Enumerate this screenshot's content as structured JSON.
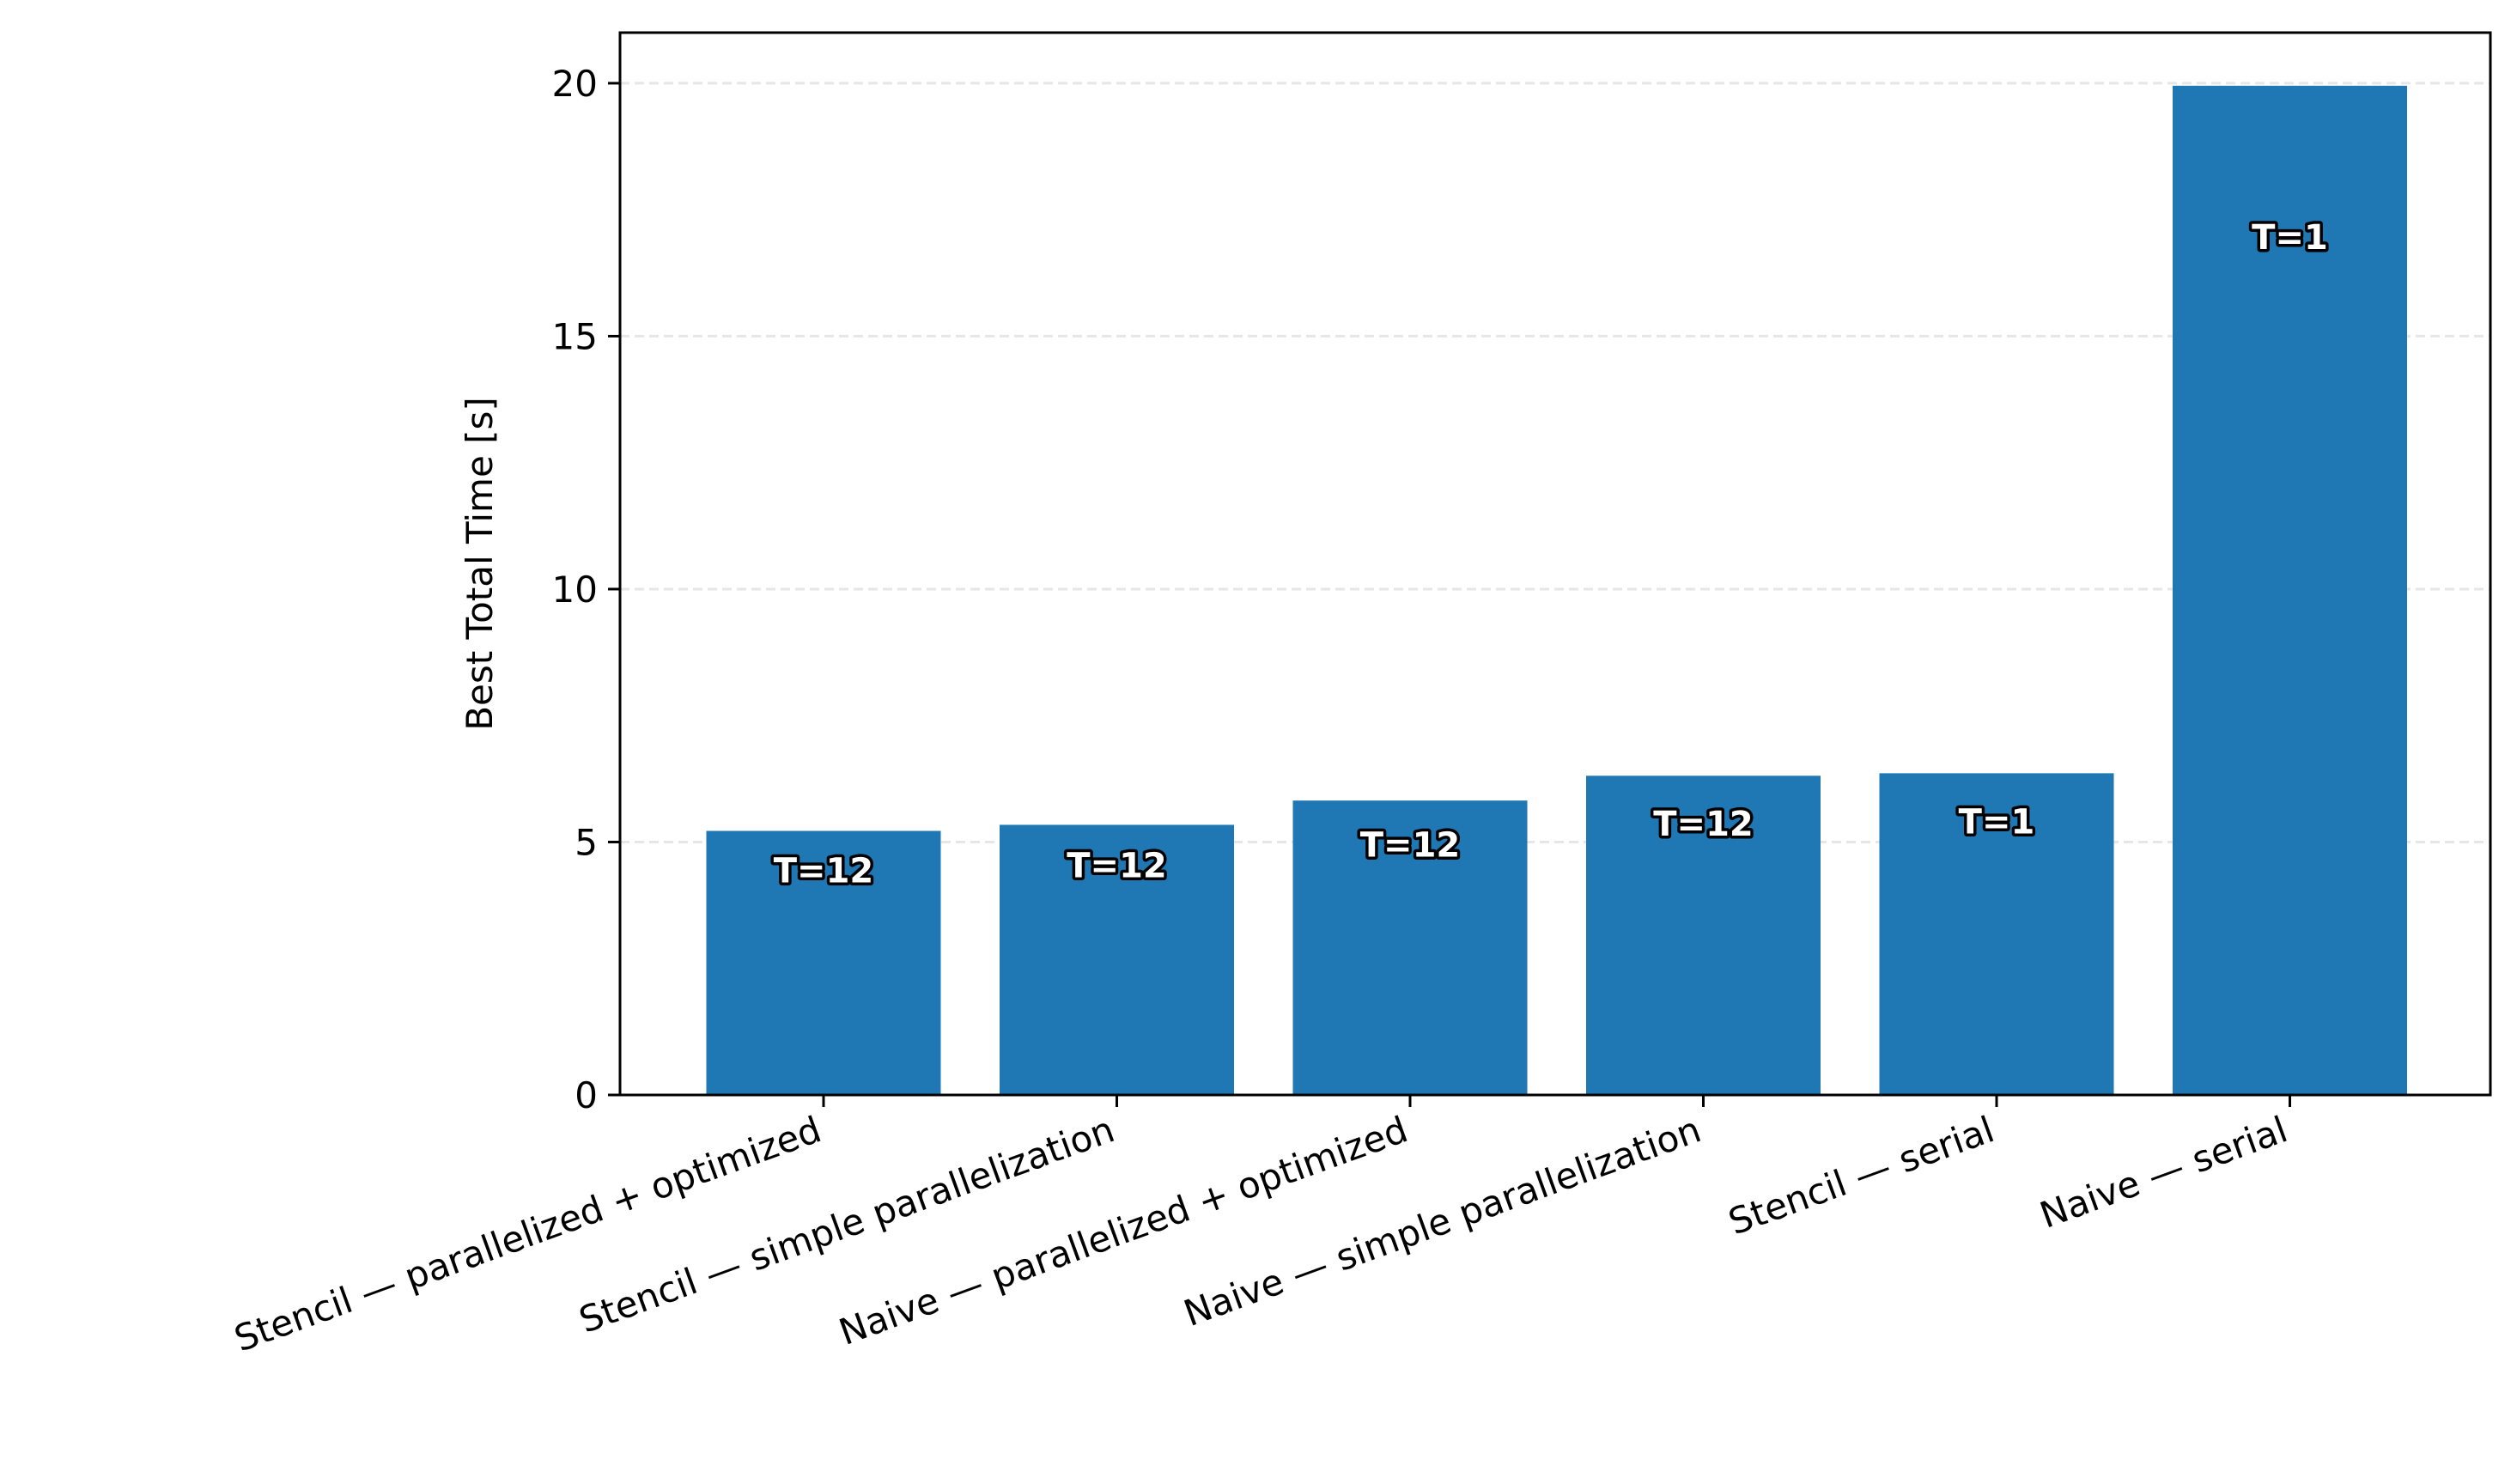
{
  "chart_data": {
    "type": "bar",
    "categories": [
      "Stencil — parallelized + optimized",
      "Stencil — simple parallelization",
      "Naive — parallelized + optimized",
      "Naive — simple parallelization",
      "Stencil — serial",
      "Naive — serial"
    ],
    "values": [
      5.22,
      5.34,
      5.82,
      6.31,
      6.36,
      19.95
    ],
    "bar_labels": [
      "T=12",
      "T=12",
      "T=12",
      "T=12",
      "T=1",
      "T=1"
    ],
    "ylabel": "Best Total Time [s]",
    "xlabel": "",
    "ylim": [
      0,
      21
    ],
    "yticks": [
      0,
      5,
      10,
      15,
      20
    ],
    "grid": "y-dashed",
    "bar_color": "#1f77b4",
    "grid_color": "#e6e6e6"
  }
}
